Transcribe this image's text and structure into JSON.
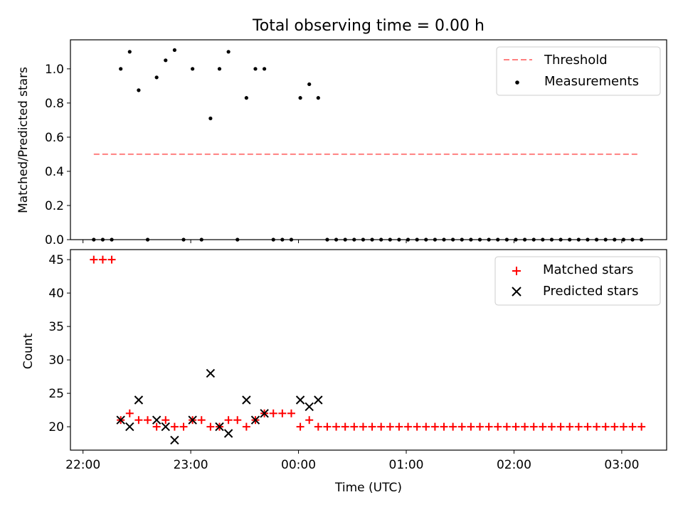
{
  "title": "Total observing time = 0.00 h",
  "colors": {
    "threshold": "#ff8080",
    "measurements": "#000000",
    "matched": "#ff0000",
    "predicted": "#000000"
  },
  "chart_data": [
    {
      "type": "scatter",
      "panel": "top",
      "ylabel": "Matched/Predicted stars",
      "xlim": [
        "21:53",
        "03:25"
      ],
      "ylim": [
        0,
        1.17
      ],
      "yticks": [
        0.0,
        0.2,
        0.4,
        0.6,
        0.8,
        1.0
      ],
      "ytick_labels": [
        "0.0",
        "0.2",
        "0.4",
        "0.6",
        "0.8",
        "1.0"
      ],
      "legend_position": "upper-right",
      "legend": [
        {
          "label": "Threshold",
          "style": "dashed-line"
        },
        {
          "label": "Measurements",
          "style": "dot"
        }
      ],
      "threshold": {
        "name": "Threshold",
        "value": 0.5,
        "x_start": "22:06",
        "x_end": "03:09"
      },
      "series": [
        {
          "name": "Measurements",
          "points": [
            [
              "22:06",
              0
            ],
            [
              "22:11",
              0
            ],
            [
              "22:16",
              0
            ],
            [
              "22:21",
              1.0
            ],
            [
              "22:26",
              1.1
            ],
            [
              "22:31",
              0.875
            ],
            [
              "22:36",
              0
            ],
            [
              "22:41",
              0.95
            ],
            [
              "22:46",
              1.05
            ],
            [
              "22:51",
              1.11
            ],
            [
              "22:56",
              0
            ],
            [
              "23:01",
              1.0
            ],
            [
              "23:06",
              0
            ],
            [
              "23:11",
              0.71
            ],
            [
              "23:16",
              1.0
            ],
            [
              "23:21",
              1.1
            ],
            [
              "23:26",
              0
            ],
            [
              "23:31",
              0.83
            ],
            [
              "23:36",
              1.0
            ],
            [
              "23:41",
              1.0
            ],
            [
              "23:46",
              0
            ],
            [
              "23:51",
              0
            ],
            [
              "23:56",
              0
            ],
            [
              "00:01",
              0.83
            ],
            [
              "00:06",
              0.91
            ],
            [
              "00:11",
              0.83
            ],
            [
              "00:16",
              0
            ],
            [
              "00:21",
              0
            ],
            [
              "00:26",
              0
            ],
            [
              "00:31",
              0
            ],
            [
              "00:36",
              0
            ],
            [
              "00:41",
              0
            ],
            [
              "00:46",
              0
            ],
            [
              "00:51",
              0
            ],
            [
              "00:56",
              0
            ],
            [
              "01:01",
              0
            ],
            [
              "01:06",
              0
            ],
            [
              "01:11",
              0
            ],
            [
              "01:16",
              0
            ],
            [
              "01:21",
              0
            ],
            [
              "01:26",
              0
            ],
            [
              "01:31",
              0
            ],
            [
              "01:36",
              0
            ],
            [
              "01:41",
              0
            ],
            [
              "01:46",
              0
            ],
            [
              "01:51",
              0
            ],
            [
              "01:56",
              0
            ],
            [
              "02:01",
              0
            ],
            [
              "02:06",
              0
            ],
            [
              "02:11",
              0
            ],
            [
              "02:16",
              0
            ],
            [
              "02:21",
              0
            ],
            [
              "02:26",
              0
            ],
            [
              "02:31",
              0
            ],
            [
              "02:36",
              0
            ],
            [
              "02:41",
              0
            ],
            [
              "02:46",
              0
            ],
            [
              "02:51",
              0
            ],
            [
              "02:56",
              0
            ],
            [
              "03:01",
              0
            ],
            [
              "03:06",
              0
            ],
            [
              "03:11",
              0
            ]
          ]
        }
      ]
    },
    {
      "type": "scatter",
      "panel": "bottom",
      "xlabel": "Time (UTC)",
      "ylabel": "Count",
      "xlim": [
        "21:53",
        "03:25"
      ],
      "ylim": [
        16.5,
        46.5
      ],
      "yticks": [
        20,
        25,
        30,
        35,
        40,
        45
      ],
      "ytick_labels": [
        "20",
        "25",
        "30",
        "35",
        "40",
        "45"
      ],
      "xticks": [
        "22:00",
        "23:00",
        "00:00",
        "01:00",
        "02:00",
        "03:00"
      ],
      "xtick_labels": [
        "22:00",
        "23:00",
        "00:00",
        "01:00",
        "02:00",
        "03:00"
      ],
      "legend_position": "upper-right",
      "legend": [
        {
          "label": "Matched stars",
          "style": "plus"
        },
        {
          "label": "Predicted stars",
          "style": "x"
        }
      ],
      "series": [
        {
          "name": "Matched stars",
          "points": [
            [
              "22:06",
              45
            ],
            [
              "22:11",
              45
            ],
            [
              "22:16",
              45
            ],
            [
              "22:21",
              21
            ],
            [
              "22:26",
              22
            ],
            [
              "22:31",
              21
            ],
            [
              "22:36",
              21
            ],
            [
              "22:41",
              20
            ],
            [
              "22:46",
              21
            ],
            [
              "22:51",
              20
            ],
            [
              "22:56",
              20
            ],
            [
              "23:01",
              21
            ],
            [
              "23:06",
              21
            ],
            [
              "23:11",
              20
            ],
            [
              "23:16",
              20
            ],
            [
              "23:21",
              21
            ],
            [
              "23:26",
              21
            ],
            [
              "23:31",
              20
            ],
            [
              "23:36",
              21
            ],
            [
              "23:41",
              22
            ],
            [
              "23:46",
              22
            ],
            [
              "23:51",
              22
            ],
            [
              "23:56",
              22
            ],
            [
              "00:01",
              20
            ],
            [
              "00:06",
              21
            ],
            [
              "00:11",
              20
            ],
            [
              "00:16",
              20
            ],
            [
              "00:21",
              20
            ],
            [
              "00:26",
              20
            ],
            [
              "00:31",
              20
            ],
            [
              "00:36",
              20
            ],
            [
              "00:41",
              20
            ],
            [
              "00:46",
              20
            ],
            [
              "00:51",
              20
            ],
            [
              "00:56",
              20
            ],
            [
              "01:01",
              20
            ],
            [
              "01:06",
              20
            ],
            [
              "01:11",
              20
            ],
            [
              "01:16",
              20
            ],
            [
              "01:21",
              20
            ],
            [
              "01:26",
              20
            ],
            [
              "01:31",
              20
            ],
            [
              "01:36",
              20
            ],
            [
              "01:41",
              20
            ],
            [
              "01:46",
              20
            ],
            [
              "01:51",
              20
            ],
            [
              "01:56",
              20
            ],
            [
              "02:01",
              20
            ],
            [
              "02:06",
              20
            ],
            [
              "02:11",
              20
            ],
            [
              "02:16",
              20
            ],
            [
              "02:21",
              20
            ],
            [
              "02:26",
              20
            ],
            [
              "02:31",
              20
            ],
            [
              "02:36",
              20
            ],
            [
              "02:41",
              20
            ],
            [
              "02:46",
              20
            ],
            [
              "02:51",
              20
            ],
            [
              "02:56",
              20
            ],
            [
              "03:01",
              20
            ],
            [
              "03:06",
              20
            ],
            [
              "03:11",
              20
            ]
          ]
        },
        {
          "name": "Predicted stars",
          "points": [
            [
              "22:21",
              21
            ],
            [
              "22:26",
              20
            ],
            [
              "22:31",
              24
            ],
            [
              "22:41",
              21
            ],
            [
              "22:46",
              20
            ],
            [
              "22:51",
              18
            ],
            [
              "23:01",
              21
            ],
            [
              "23:11",
              28
            ],
            [
              "23:16",
              20
            ],
            [
              "23:21",
              19
            ],
            [
              "23:31",
              24
            ],
            [
              "23:36",
              21
            ],
            [
              "23:41",
              22
            ],
            [
              "00:01",
              24
            ],
            [
              "00:06",
              23
            ],
            [
              "00:11",
              24
            ]
          ]
        }
      ]
    }
  ]
}
